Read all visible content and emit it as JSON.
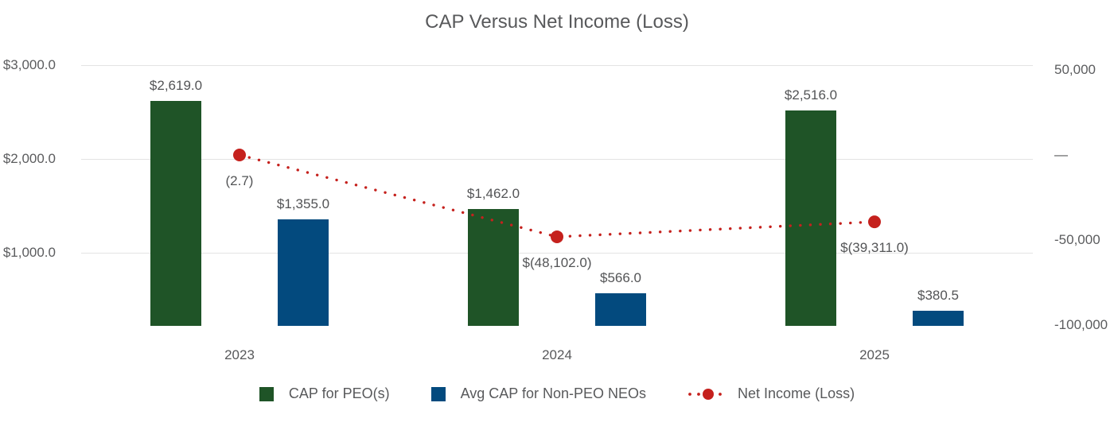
{
  "chart_data": {
    "type": "bar",
    "subtype": "combo-bar-line-dual-axis",
    "title": "CAP Versus Net Income (Loss)",
    "categories": [
      "2023",
      "2024",
      "2025"
    ],
    "series": [
      {
        "name": "CAP for PEO(s)",
        "kind": "bar",
        "axis": "left",
        "color": "#1F5427",
        "values": [
          2619.0,
          1462.0,
          2516.0
        ],
        "data_labels": [
          "$2,619.0",
          "$1,462.0",
          "$2,516.0"
        ]
      },
      {
        "name": "Avg CAP for Non-PEO NEOs",
        "kind": "bar",
        "axis": "left",
        "color": "#034A7E",
        "values": [
          1355.0,
          566.0,
          380.5
        ],
        "data_labels": [
          "$1,355.0",
          "$566.0",
          "$380.5"
        ]
      },
      {
        "name": "Net Income (Loss)",
        "kind": "dotted-line",
        "axis": "right",
        "color": "#C5211D",
        "values": [
          -2.7,
          -48102.0,
          -39311.0
        ],
        "data_labels": [
          "(2.7)",
          "$(48,102.0)",
          "$(39,311.0)"
        ]
      }
    ],
    "left_axis": {
      "tick_labels": [
        "$3,000.0",
        "$2,000.0",
        "$1,000.0"
      ],
      "tick_values": [
        3000,
        2000,
        1000
      ],
      "range": [
        0,
        3000
      ]
    },
    "right_axis": {
      "tick_labels": [
        "50,000",
        "—",
        "-50,000",
        "-100,000"
      ],
      "tick_values": [
        50000,
        0,
        -50000,
        -100000
      ],
      "range": [
        -100000,
        50000
      ]
    },
    "grid": "horizontal-light",
    "legend_position": "bottom",
    "text_color": "#58595B",
    "gridline_color": "#E3E3E3",
    "background": "#FFFFFF"
  }
}
